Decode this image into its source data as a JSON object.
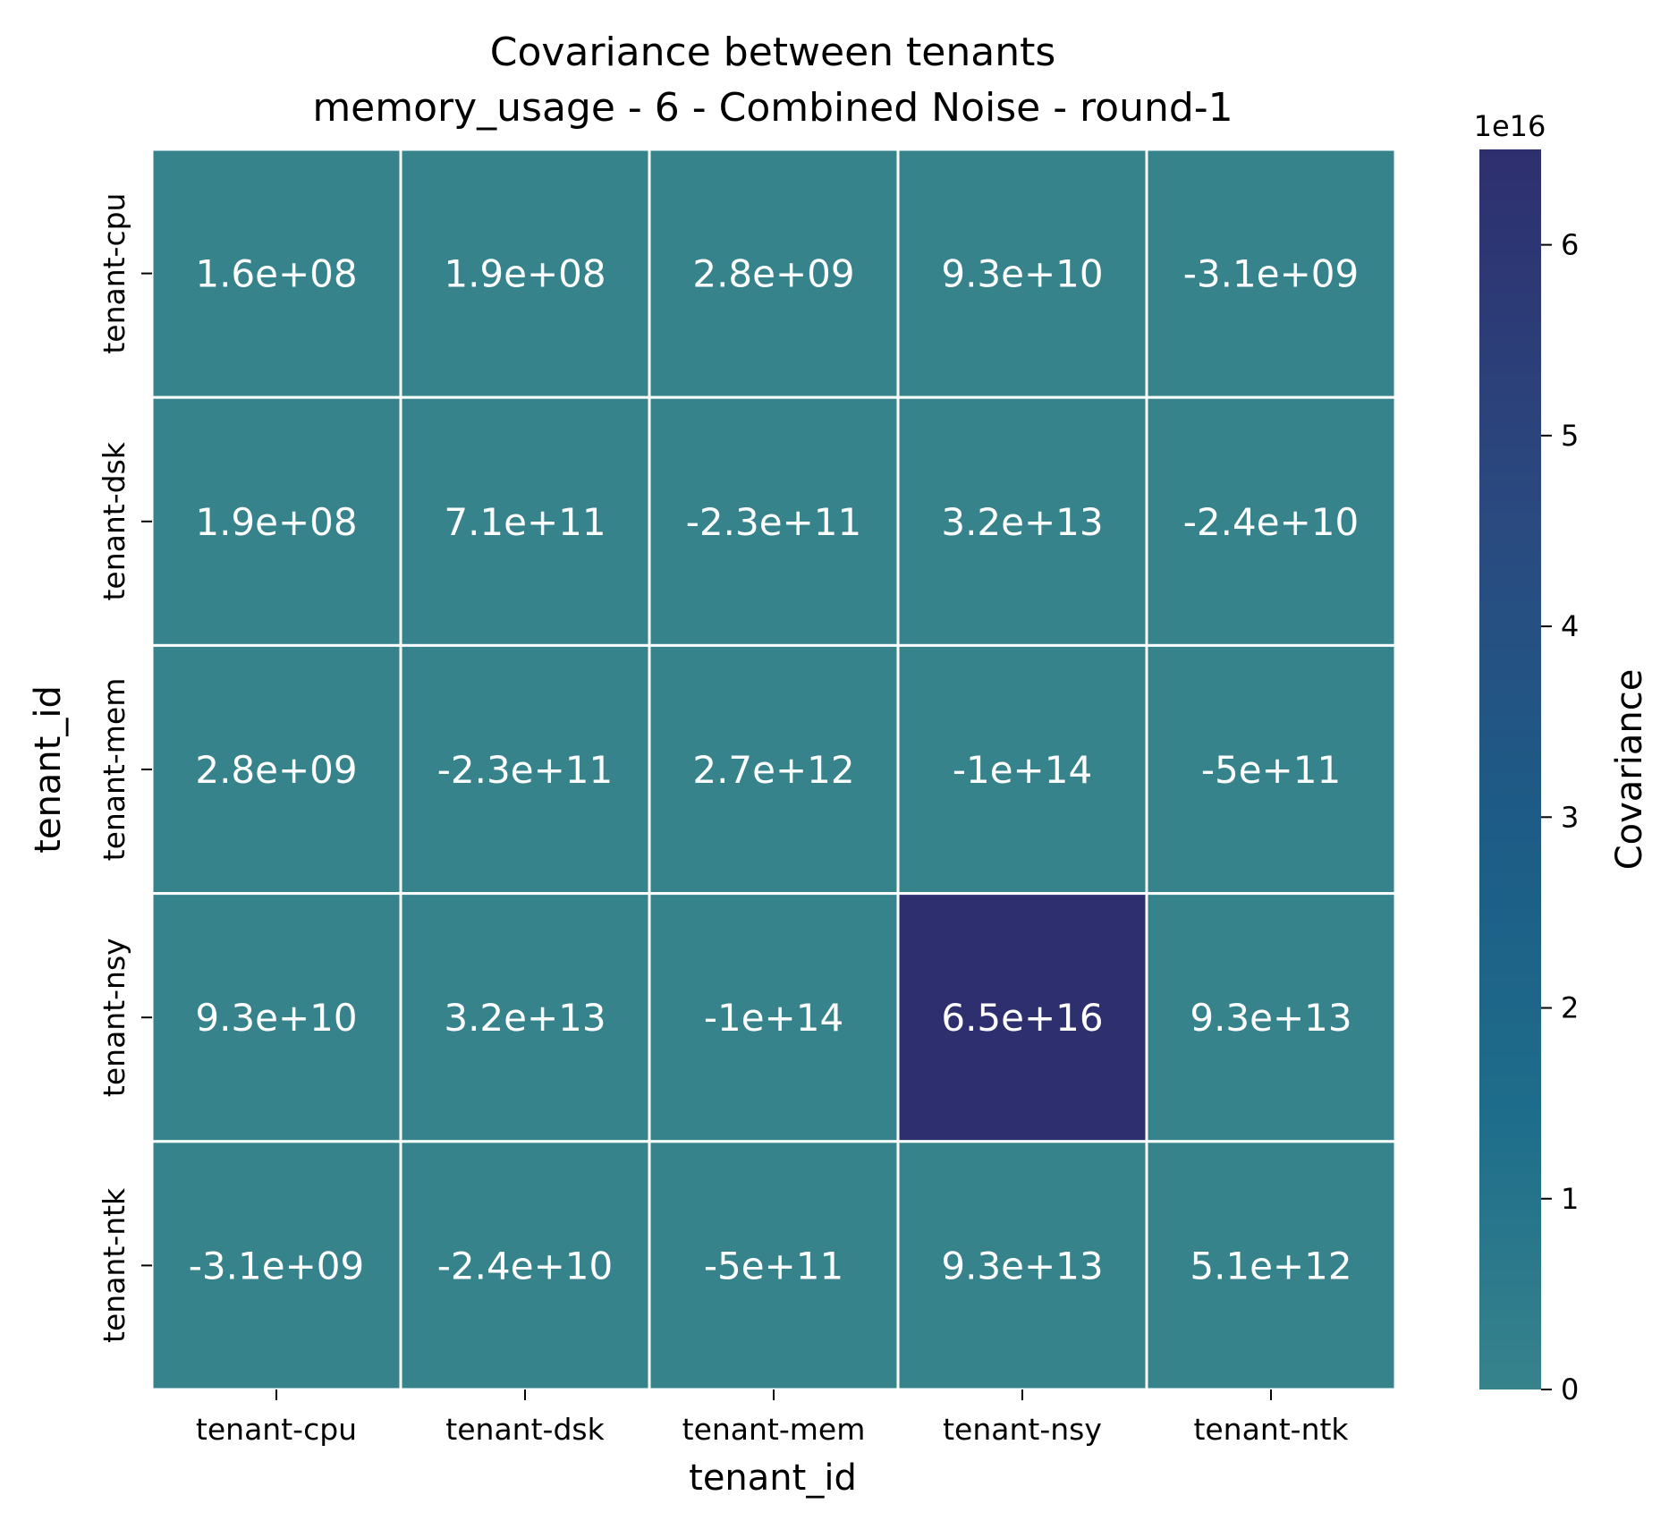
{
  "chart_data": {
    "type": "heatmap",
    "title": [
      "Covariance between tenants",
      "memory_usage - 6 - Combined Noise - round-1"
    ],
    "xlabel": "tenant_id",
    "ylabel": "tenant_id",
    "x_categories": [
      "tenant-cpu",
      "tenant-dsk",
      "tenant-mem",
      "tenant-nsy",
      "tenant-ntk"
    ],
    "y_categories": [
      "tenant-cpu",
      "tenant-dsk",
      "tenant-mem",
      "tenant-nsy",
      "tenant-ntk"
    ],
    "values": [
      [
        160000000.0,
        190000000.0,
        2800000000.0,
        93000000000.0,
        -3100000000.0
      ],
      [
        190000000.0,
        710000000000.0,
        -230000000000.0,
        32000000000000.0,
        -24000000000.0
      ],
      [
        2800000000.0,
        -230000000000.0,
        2700000000000.0,
        -100000000000000.0,
        -500000000000.0
      ],
      [
        93000000000.0,
        32000000000000.0,
        -100000000000000.0,
        6.5e+16,
        93000000000000.0
      ],
      [
        -3100000000.0,
        -24000000000.0,
        -500000000000.0,
        93000000000000.0,
        5100000000000.0
      ]
    ],
    "cell_labels": [
      [
        "1.6e+08",
        "1.9e+08",
        "2.8e+09",
        "9.3e+10",
        "-3.1e+09"
      ],
      [
        "1.9e+08",
        "7.1e+11",
        "-2.3e+11",
        "3.2e+13",
        "-2.4e+10"
      ],
      [
        "2.8e+09",
        "-2.3e+11",
        "2.7e+12",
        "-1e+14",
        "-5e+11"
      ],
      [
        "9.3e+10",
        "3.2e+13",
        "-1e+14",
        "6.5e+16",
        "9.3e+13"
      ],
      [
        "-3.1e+09",
        "-2.4e+10",
        "-5e+11",
        "9.3e+13",
        "5.1e+12"
      ]
    ],
    "colorbar": {
      "label": "Covariance",
      "multiplier": "1e16",
      "range": [
        0,
        6.5e+16
      ],
      "ticks": [
        0,
        1,
        2,
        3,
        4,
        5,
        6
      ],
      "tick_labels": [
        "0",
        "1",
        "2",
        "3",
        "4",
        "5",
        "6"
      ],
      "color_low": "#37838c",
      "color_high": "#2e2f6f"
    },
    "cell_text_color": "#ffffff",
    "gridline_color": "#ffffff"
  }
}
